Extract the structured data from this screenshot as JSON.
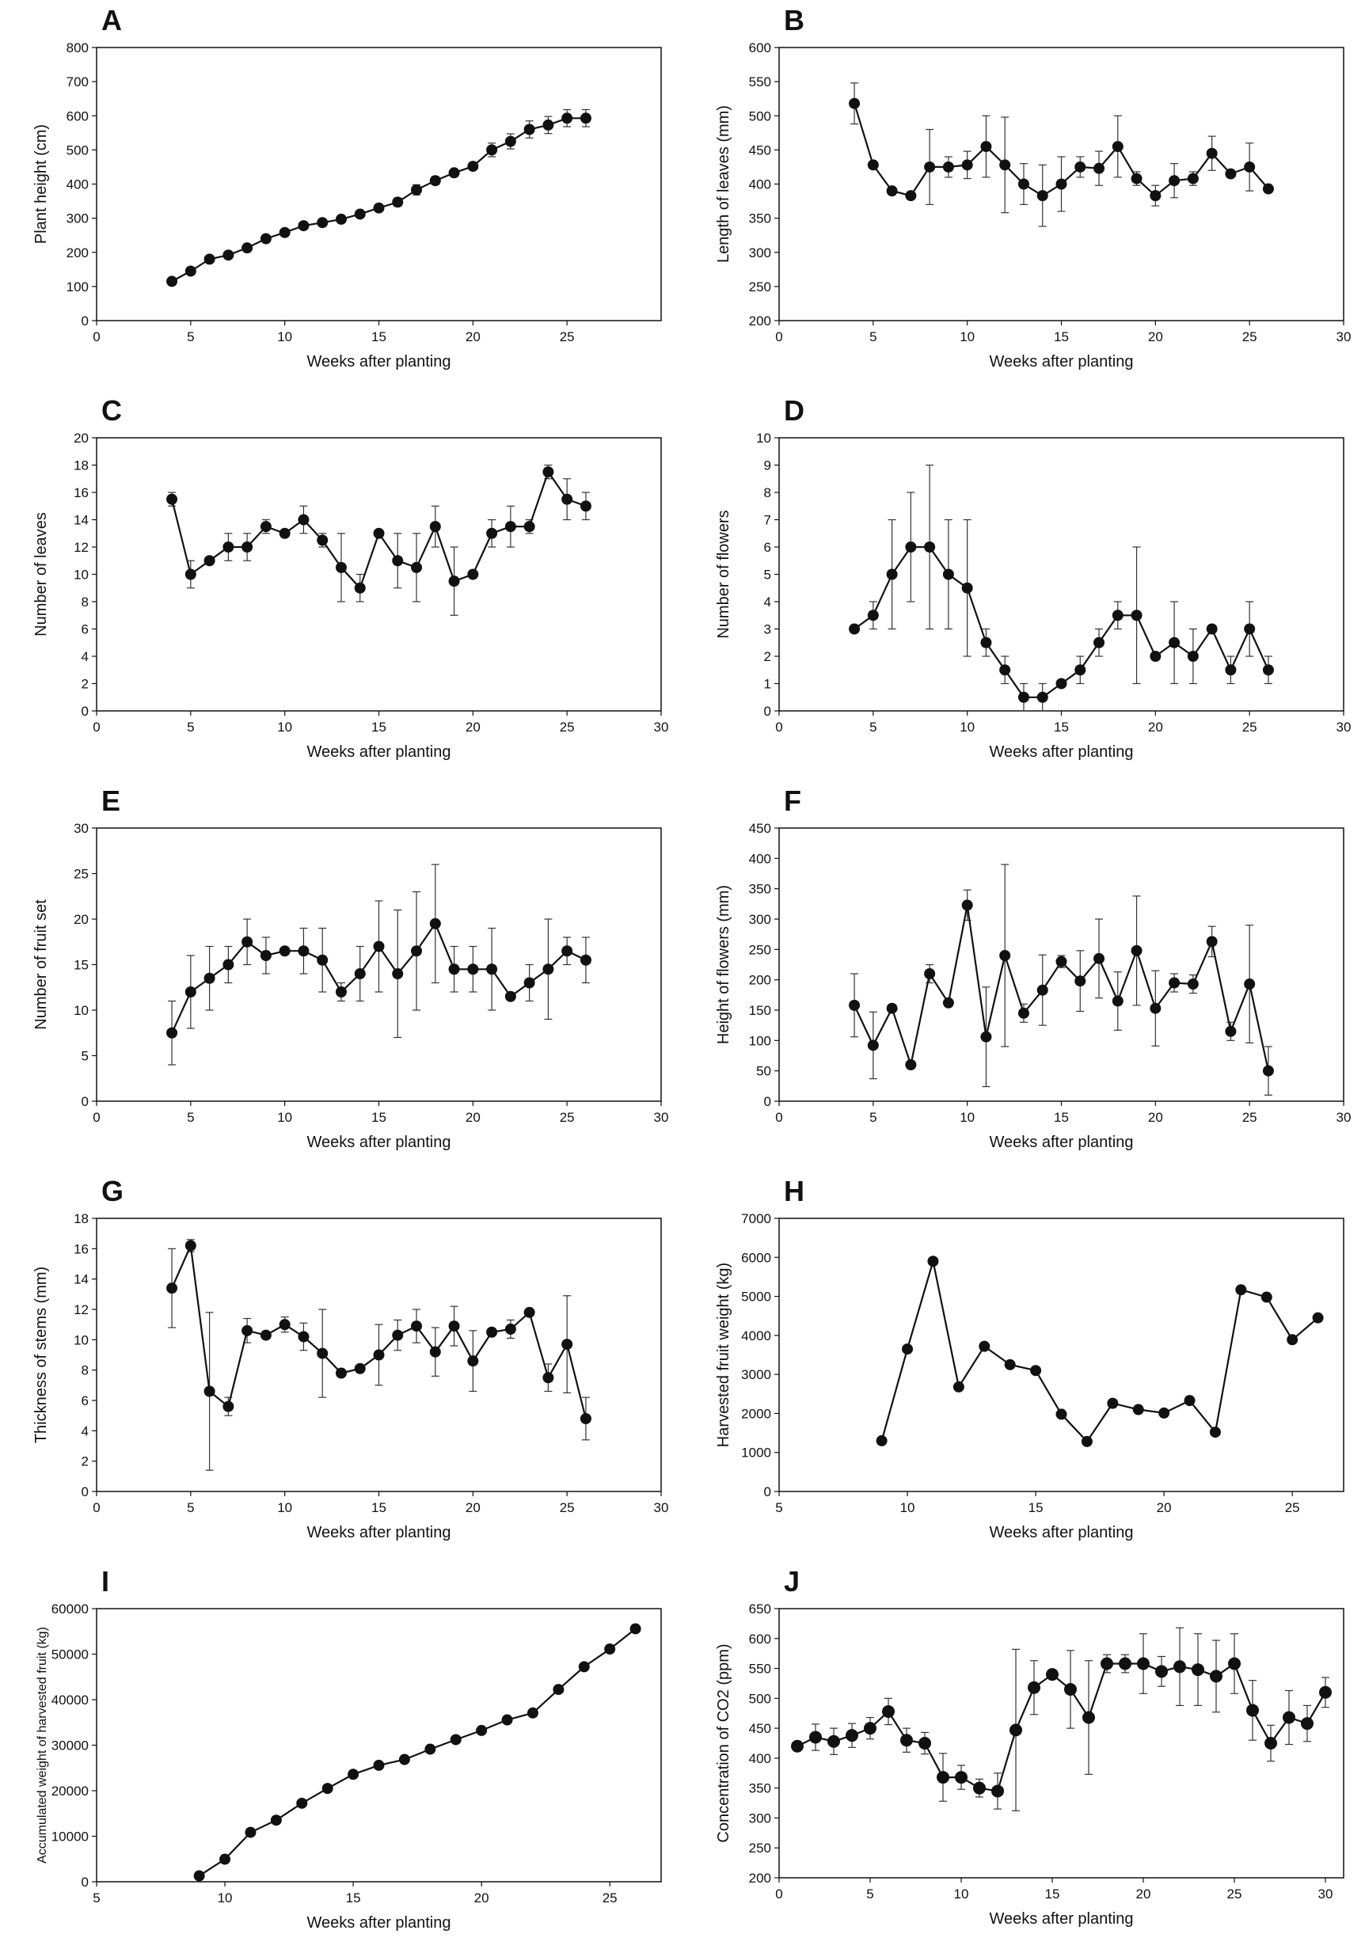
{
  "figure": {
    "panels": [
      {
        "letter": "A",
        "xlabel": "Weeks after planting",
        "ylabel": "Plant height (cm)"
      },
      {
        "letter": "B",
        "xlabel": "Weeks after planting",
        "ylabel": "Length of leaves (mm)"
      },
      {
        "letter": "C",
        "xlabel": "Weeks after planting",
        "ylabel": "Number of leaves"
      },
      {
        "letter": "D",
        "xlabel": "Weeks after planting",
        "ylabel": "Number of flowers"
      },
      {
        "letter": "E",
        "xlabel": "Weeks after planting",
        "ylabel": "Number of fruit set"
      },
      {
        "letter": "F",
        "xlabel": "Weeks after planting",
        "ylabel": "Height of flowers (mm)"
      },
      {
        "letter": "G",
        "xlabel": "Weeks after planting",
        "ylabel": "Thickness of  stems (mm)"
      },
      {
        "letter": "H",
        "xlabel": "Weeks after planting",
        "ylabel": "Harvested fruit weight (kg)"
      },
      {
        "letter": "I",
        "xlabel": "Weeks after planting",
        "ylabel": "Accumulated weight of harvested fruit (kg)"
      },
      {
        "letter": "J",
        "xlabel": "Weeks after planting",
        "ylabel": "Concentration of CO2 (ppm)"
      }
    ]
  },
  "chart_data": [
    {
      "id": "A",
      "type": "line",
      "xlabel": "Weeks after planting",
      "ylabel": "Plant height (cm)",
      "xlim": [
        0,
        30
      ],
      "xticks": [
        0,
        5,
        10,
        15,
        20,
        25
      ],
      "ylim": [
        0,
        800
      ],
      "yticks": [
        0,
        100,
        200,
        300,
        400,
        500,
        600,
        700,
        800
      ],
      "x": [
        4,
        5,
        6,
        7,
        8,
        9,
        10,
        11,
        12,
        13,
        14,
        15,
        16,
        17,
        18,
        19,
        20,
        21,
        22,
        23,
        24,
        25,
        26
      ],
      "y": [
        115,
        145,
        180,
        192,
        213,
        240,
        258,
        278,
        287,
        297,
        312,
        330,
        347,
        383,
        410,
        433,
        452,
        500,
        525,
        560,
        573,
        593,
        593
      ],
      "err": [
        5,
        5,
        5,
        5,
        5,
        5,
        5,
        10,
        8,
        8,
        8,
        10,
        12,
        15,
        12,
        10,
        10,
        20,
        22,
        25,
        25,
        25,
        25
      ]
    },
    {
      "id": "B",
      "type": "line",
      "xlabel": "Weeks after planting",
      "ylabel": "Length of leaves (mm)",
      "xlim": [
        0,
        30
      ],
      "xticks": [
        0,
        5,
        10,
        15,
        20,
        25,
        30
      ],
      "ylim": [
        200,
        600
      ],
      "yticks": [
        200,
        250,
        300,
        350,
        400,
        450,
        500,
        550,
        600
      ],
      "x": [
        4,
        5,
        6,
        7,
        8,
        9,
        10,
        11,
        12,
        13,
        14,
        15,
        16,
        17,
        18,
        19,
        20,
        21,
        22,
        23,
        24,
        25,
        26
      ],
      "y": [
        518,
        428,
        390,
        383,
        425,
        425,
        428,
        455,
        428,
        400,
        383,
        400,
        425,
        423,
        455,
        408,
        383,
        405,
        408,
        445,
        415,
        425,
        393
      ],
      "err": [
        30,
        0,
        0,
        0,
        55,
        15,
        20,
        45,
        70,
        30,
        45,
        40,
        15,
        25,
        45,
        10,
        15,
        25,
        10,
        25,
        0,
        35,
        0
      ]
    },
    {
      "id": "C",
      "type": "line",
      "xlabel": "Weeks after planting",
      "ylabel": "Number of leaves",
      "xlim": [
        0,
        30
      ],
      "xticks": [
        0,
        5,
        10,
        15,
        20,
        25,
        30
      ],
      "ylim": [
        0,
        20
      ],
      "yticks": [
        0,
        2,
        4,
        6,
        8,
        10,
        12,
        14,
        16,
        18,
        20
      ],
      "x": [
        4,
        5,
        6,
        7,
        8,
        9,
        10,
        11,
        12,
        13,
        14,
        15,
        16,
        17,
        18,
        19,
        20,
        21,
        22,
        23,
        24,
        25,
        26
      ],
      "y": [
        15.5,
        10,
        11,
        12,
        12,
        13.5,
        13,
        14,
        12.5,
        10.5,
        9,
        13,
        11,
        10.5,
        13.5,
        9.5,
        10,
        13,
        13.5,
        13.5,
        17.5,
        15.5,
        15
      ],
      "err": [
        0.5,
        1,
        0,
        1,
        1,
        0.5,
        0,
        1,
        0.5,
        2.5,
        1,
        0,
        2,
        2.5,
        1.5,
        2.5,
        0,
        1,
        1.5,
        0.5,
        0.5,
        1.5,
        1
      ]
    },
    {
      "id": "D",
      "type": "line",
      "xlabel": "Weeks after planting",
      "ylabel": "Number of flowers",
      "xlim": [
        0,
        30
      ],
      "xticks": [
        0,
        5,
        10,
        15,
        20,
        25,
        30
      ],
      "ylim": [
        0,
        10
      ],
      "yticks": [
        0,
        1,
        2,
        3,
        4,
        5,
        6,
        7,
        8,
        9,
        10
      ],
      "x": [
        4,
        5,
        6,
        7,
        8,
        9,
        10,
        11,
        12,
        13,
        14,
        15,
        16,
        17,
        18,
        19,
        20,
        21,
        22,
        23,
        24,
        25,
        26
      ],
      "y": [
        3,
        3.5,
        5,
        6,
        6,
        5,
        4.5,
        2.5,
        1.5,
        0.5,
        0.5,
        1,
        1.5,
        2.5,
        3.5,
        3.5,
        2,
        2.5,
        2,
        3,
        1.5,
        3,
        1.5
      ],
      "err": [
        0,
        0.5,
        2,
        2,
        3,
        2,
        2.5,
        0.5,
        0.5,
        0.5,
        0.5,
        0,
        0.5,
        0.5,
        0.5,
        2.5,
        0,
        1.5,
        1,
        0,
        0.5,
        1,
        0.5
      ]
    },
    {
      "id": "E",
      "type": "line",
      "xlabel": "Weeks after planting",
      "ylabel": "Number of fruit set",
      "xlim": [
        0,
        30
      ],
      "xticks": [
        0,
        5,
        10,
        15,
        20,
        25,
        30
      ],
      "ylim": [
        0,
        30
      ],
      "yticks": [
        0,
        5,
        10,
        15,
        20,
        25,
        30
      ],
      "x": [
        4,
        5,
        6,
        7,
        8,
        9,
        10,
        11,
        12,
        13,
        14,
        15,
        16,
        17,
        18,
        19,
        20,
        21,
        22,
        23,
        24,
        25,
        26
      ],
      "y": [
        7.5,
        12,
        13.5,
        15,
        17.5,
        16,
        16.5,
        16.5,
        15.5,
        12,
        14,
        17,
        14,
        16.5,
        19.5,
        14.5,
        14.5,
        14.5,
        11.5,
        13,
        14.5,
        16.5,
        15.5
      ],
      "err": [
        3.5,
        4,
        3.5,
        2,
        2.5,
        2,
        0,
        2.5,
        3.5,
        1,
        3,
        5,
        7,
        6.5,
        6.5,
        2.5,
        2.5,
        4.5,
        0,
        2,
        5.5,
        1.5,
        2.5
      ]
    },
    {
      "id": "F",
      "type": "line",
      "xlabel": "Weeks after planting",
      "ylabel": "Height of flowers (mm)",
      "xlim": [
        0,
        30
      ],
      "xticks": [
        0,
        5,
        10,
        15,
        20,
        25,
        30
      ],
      "ylim": [
        0,
        450
      ],
      "yticks": [
        0,
        50,
        100,
        150,
        200,
        250,
        300,
        350,
        400,
        450
      ],
      "x": [
        4,
        5,
        6,
        7,
        8,
        9,
        10,
        11,
        12,
        13,
        14,
        15,
        16,
        17,
        18,
        19,
        20,
        21,
        22,
        23,
        24,
        25,
        26
      ],
      "y": [
        158,
        92,
        153,
        60,
        210,
        162,
        323,
        106,
        240,
        145,
        183,
        230,
        198,
        235,
        165,
        248,
        153,
        195,
        193,
        263,
        115,
        193,
        50
      ],
      "err": [
        52,
        55,
        0,
        0,
        15,
        0,
        25,
        82,
        150,
        15,
        58,
        10,
        50,
        65,
        48,
        90,
        62,
        15,
        15,
        25,
        15,
        97,
        40
      ]
    },
    {
      "id": "G",
      "type": "line",
      "xlabel": "Weeks after planting",
      "ylabel": "Thickness of  stems (mm)",
      "xlim": [
        0,
        30
      ],
      "xticks": [
        0,
        5,
        10,
        15,
        20,
        25,
        30
      ],
      "ylim": [
        0,
        18
      ],
      "yticks": [
        0,
        2,
        4,
        6,
        8,
        10,
        12,
        14,
        16,
        18
      ],
      "x": [
        4,
        5,
        6,
        7,
        8,
        9,
        10,
        11,
        12,
        13,
        14,
        15,
        16,
        17,
        18,
        19,
        20,
        21,
        22,
        23,
        24,
        25,
        26
      ],
      "y": [
        13.4,
        16.2,
        6.6,
        5.6,
        10.6,
        10.3,
        11,
        10.2,
        9.1,
        7.8,
        8.1,
        9,
        10.3,
        10.9,
        9.2,
        10.9,
        8.6,
        10.5,
        10.7,
        11.8,
        7.5,
        9.7,
        4.8
      ],
      "err": [
        2.6,
        0.4,
        5.2,
        0.6,
        0.8,
        0,
        0.5,
        0.9,
        2.9,
        0,
        0,
        2,
        1,
        1.1,
        1.6,
        1.3,
        2,
        0,
        0.6,
        0,
        0.9,
        3.2,
        1.4
      ]
    },
    {
      "id": "H",
      "type": "line",
      "xlabel": "Weeks after planting",
      "ylabel": "Harvested fruit weight (kg)",
      "xlim": [
        5,
        27
      ],
      "xticks": [
        5,
        10,
        15,
        20,
        25
      ],
      "ylim": [
        0,
        7000
      ],
      "yticks": [
        0,
        1000,
        2000,
        3000,
        4000,
        5000,
        6000,
        7000
      ],
      "x": [
        9,
        10,
        11,
        12,
        13,
        14,
        15,
        16,
        17,
        18,
        19,
        20,
        21,
        22,
        23,
        24,
        25,
        26
      ],
      "y": [
        1300,
        3650,
        5900,
        2680,
        3720,
        3250,
        3100,
        1980,
        1280,
        2260,
        2100,
        2010,
        2330,
        1520,
        5170,
        4980,
        3890,
        4450
      ],
      "err": null
    },
    {
      "id": "I",
      "type": "line",
      "xlabel": "Weeks after planting",
      "ylabel": "Accumulated weight of harvested fruit (kg)",
      "xlim": [
        5,
        27
      ],
      "xticks": [
        5,
        10,
        15,
        20,
        25
      ],
      "ylim": [
        0,
        60000
      ],
      "yticks": [
        0,
        10000,
        20000,
        30000,
        40000,
        50000,
        60000
      ],
      "x": [
        9,
        10,
        11,
        12,
        13,
        14,
        15,
        16,
        17,
        18,
        19,
        20,
        21,
        22,
        23,
        24,
        25,
        26
      ],
      "y": [
        1300,
        4950,
        10850,
        13530,
        17250,
        20500,
        23600,
        25580,
        26860,
        29120,
        31220,
        33230,
        35560,
        37080,
        42250,
        47230,
        51120,
        55570
      ],
      "err": null
    },
    {
      "id": "J",
      "type": "line",
      "xlabel": "Weeks after planting",
      "ylabel": "Concentration of CO2 (ppm)",
      "xlim": [
        0,
        31
      ],
      "xticks": [
        0,
        5,
        10,
        15,
        20,
        25,
        30
      ],
      "ylim": [
        200,
        650
      ],
      "yticks": [
        200,
        250,
        300,
        350,
        400,
        450,
        500,
        550,
        600,
        650
      ],
      "x": [
        1,
        2,
        3,
        4,
        5,
        6,
        7,
        8,
        9,
        10,
        11,
        12,
        13,
        14,
        15,
        16,
        17,
        18,
        19,
        20,
        21,
        22,
        23,
        24,
        25,
        26,
        27,
        28,
        29,
        30
      ],
      "y": [
        420,
        435,
        428,
        438,
        450,
        478,
        430,
        425,
        368,
        368,
        350,
        345,
        447,
        518,
        540,
        515,
        468,
        558,
        558,
        558,
        545,
        553,
        548,
        537,
        558,
        480,
        425,
        468,
        458,
        510
      ],
      "err": [
        8,
        22,
        22,
        20,
        18,
        22,
        20,
        18,
        40,
        20,
        15,
        30,
        135,
        45,
        0,
        65,
        95,
        15,
        15,
        50,
        25,
        65,
        60,
        60,
        50,
        50,
        30,
        45,
        30,
        25
      ]
    }
  ]
}
